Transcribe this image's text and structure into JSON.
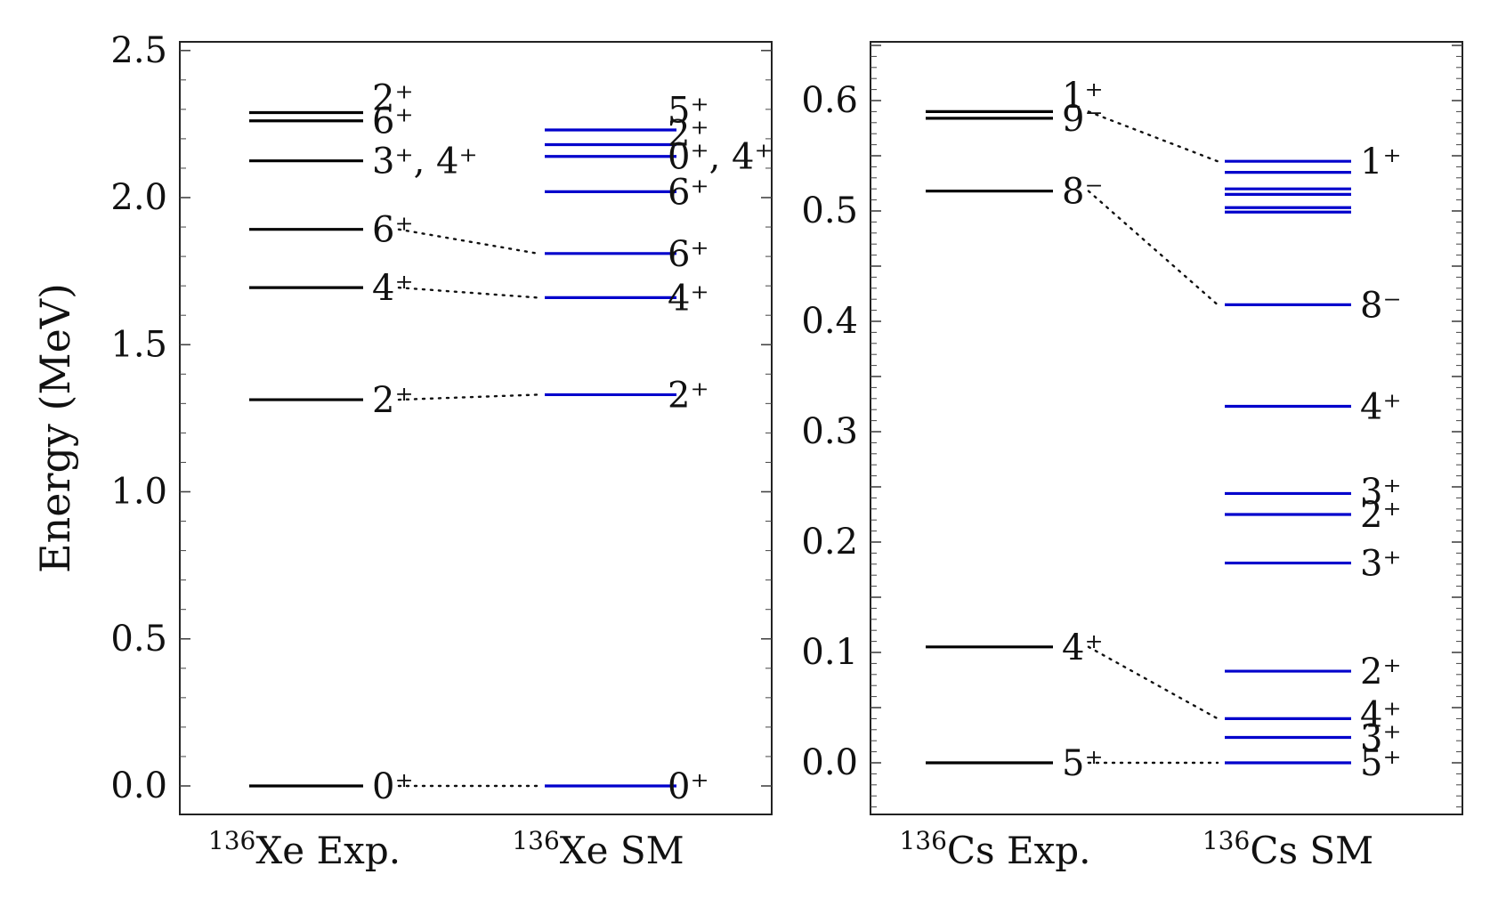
{
  "colors": {
    "exp": "#000000",
    "sm": "#0000cc"
  },
  "chart_data": [
    {
      "type": "level-scheme",
      "ylabel": "Energy (MeV)",
      "ylim": [
        -0.1,
        2.5
      ],
      "yticks": [
        "0.0",
        "0.5",
        "1.0",
        "1.5",
        "2.0",
        "2.5"
      ],
      "columns": [
        {
          "nucleus": "136",
          "label": "Xe Exp."
        },
        {
          "nucleus": "136",
          "label": "Xe SM"
        }
      ],
      "experimental": [
        {
          "energy": 0.0,
          "label": "0⁺"
        },
        {
          "energy": 1.313,
          "label": "2⁺"
        },
        {
          "energy": 1.694,
          "label": "4⁺"
        },
        {
          "energy": 1.892,
          "label": "6⁺"
        },
        {
          "energy": 2.125,
          "label": "3⁺, 4⁺"
        },
        {
          "energy": 2.261,
          "label": "6⁺"
        },
        {
          "energy": 2.289,
          "label": "2⁺"
        }
      ],
      "shell_model": [
        {
          "energy": 0.0,
          "label": "0⁺"
        },
        {
          "energy": 1.33,
          "label": "2⁺"
        },
        {
          "energy": 1.66,
          "label": "4⁺"
        },
        {
          "energy": 1.81,
          "label": "6⁺"
        },
        {
          "energy": 2.02,
          "label": "6⁺"
        },
        {
          "energy": 2.14,
          "label": "0⁺, 4⁺"
        },
        {
          "energy": 2.18,
          "label": "2⁺"
        },
        {
          "energy": 2.23,
          "label": "5⁺"
        }
      ],
      "connections": [
        [
          0,
          0
        ],
        [
          1,
          1
        ],
        [
          2,
          2
        ],
        [
          3,
          3
        ]
      ]
    },
    {
      "type": "level-scheme",
      "ylabel": "",
      "ylim": [
        -0.05,
        0.65
      ],
      "yticks": [
        "0.0",
        "0.1",
        "0.2",
        "0.3",
        "0.4",
        "0.5",
        "0.6"
      ],
      "columns": [
        {
          "nucleus": "136",
          "label": "Cs Exp."
        },
        {
          "nucleus": "136",
          "label": "Cs SM"
        }
      ],
      "experimental": [
        {
          "energy": 0.0,
          "label": "5⁺"
        },
        {
          "energy": 0.105,
          "label": "4⁺"
        },
        {
          "energy": 0.518,
          "label": "8⁻"
        },
        {
          "energy": 0.584,
          "label": "9⁻"
        },
        {
          "energy": 0.59,
          "label": "1⁺"
        }
      ],
      "shell_model": [
        {
          "energy": 0.0,
          "label": "5⁺"
        },
        {
          "energy": 0.023,
          "label": "3⁺"
        },
        {
          "energy": 0.04,
          "label": "4⁺"
        },
        {
          "energy": 0.083,
          "label": "2⁺"
        },
        {
          "energy": 0.181,
          "label": "3⁺"
        },
        {
          "energy": 0.225,
          "label": "2⁺"
        },
        {
          "energy": 0.244,
          "label": "3⁺"
        },
        {
          "energy": 0.323,
          "label": "4⁺"
        },
        {
          "energy": 0.415,
          "label": "8⁻"
        },
        {
          "energy": 0.499,
          "label": ""
        },
        {
          "energy": 0.503,
          "label": ""
        },
        {
          "energy": 0.515,
          "label": ""
        },
        {
          "energy": 0.52,
          "label": ""
        },
        {
          "energy": 0.535,
          "label": ""
        },
        {
          "energy": 0.545,
          "label": "1⁺"
        }
      ],
      "connections": [
        [
          0,
          0
        ],
        [
          1,
          2
        ],
        [
          2,
          8
        ],
        [
          4,
          14
        ]
      ]
    }
  ]
}
